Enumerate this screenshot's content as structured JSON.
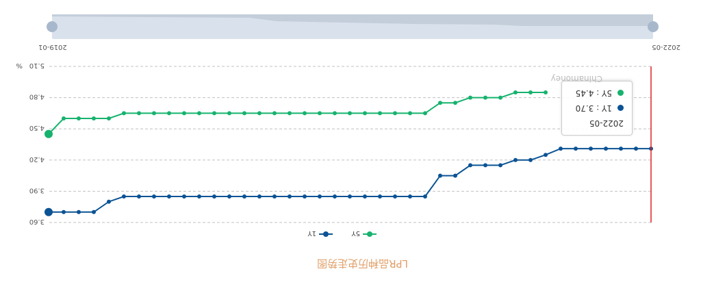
{
  "title": "LPR品种历史走势图",
  "watermark": "Chinamoney",
  "colors": {
    "1Y": "#0b5394",
    "5Y": "#16b26e",
    "cursor": "#e02020",
    "grid": "#c0c0c0",
    "title": "#e0a06a"
  },
  "zoom": {
    "start_label": "2019-01",
    "end_label": "2022-05"
  },
  "tooltip": {
    "date": "2022-05",
    "rows": [
      {
        "name": "1Y",
        "value_text": "1Y  : 3.70"
      },
      {
        "name": "5Y",
        "value_text": "5Y  : 4.45"
      }
    ]
  },
  "chart_data": {
    "type": "line",
    "title": "LPR品种历史走势图",
    "ylabel": "%",
    "ylim": [
      3.6,
      5.1
    ],
    "yticks": [
      3.6,
      3.9,
      4.2,
      4.5,
      4.8,
      5.1
    ],
    "ytick_labels": [
      "3.60",
      "3.90",
      "4.20",
      "4.50",
      "4.80",
      "5.10"
    ],
    "legend": [
      "1Y",
      "5Y"
    ],
    "legend_position": "bottom",
    "grid": true,
    "x_start": "2019-01",
    "x_end": "2022-05",
    "series": [
      {
        "name": "1Y",
        "values": [
          4.31,
          4.31,
          4.31,
          4.31,
          4.31,
          4.31,
          4.31,
          4.25,
          4.2,
          4.2,
          4.15,
          4.15,
          4.15,
          4.05,
          4.05,
          3.85,
          3.85,
          3.85,
          3.85,
          3.85,
          3.85,
          3.85,
          3.85,
          3.85,
          3.85,
          3.85,
          3.85,
          3.85,
          3.85,
          3.85,
          3.85,
          3.85,
          3.85,
          3.85,
          3.85,
          3.85,
          3.8,
          3.7,
          3.7,
          3.7,
          3.7
        ]
      },
      {
        "name": "5Y",
        "values": [
          null,
          null,
          null,
          null,
          null,
          null,
          null,
          4.85,
          4.85,
          4.85,
          4.8,
          4.8,
          4.8,
          4.75,
          4.75,
          4.65,
          4.65,
          4.65,
          4.65,
          4.65,
          4.65,
          4.65,
          4.65,
          4.65,
          4.65,
          4.65,
          4.65,
          4.65,
          4.65,
          4.65,
          4.65,
          4.65,
          4.65,
          4.65,
          4.65,
          4.65,
          4.6,
          4.6,
          4.6,
          4.6,
          4.45
        ]
      }
    ]
  }
}
